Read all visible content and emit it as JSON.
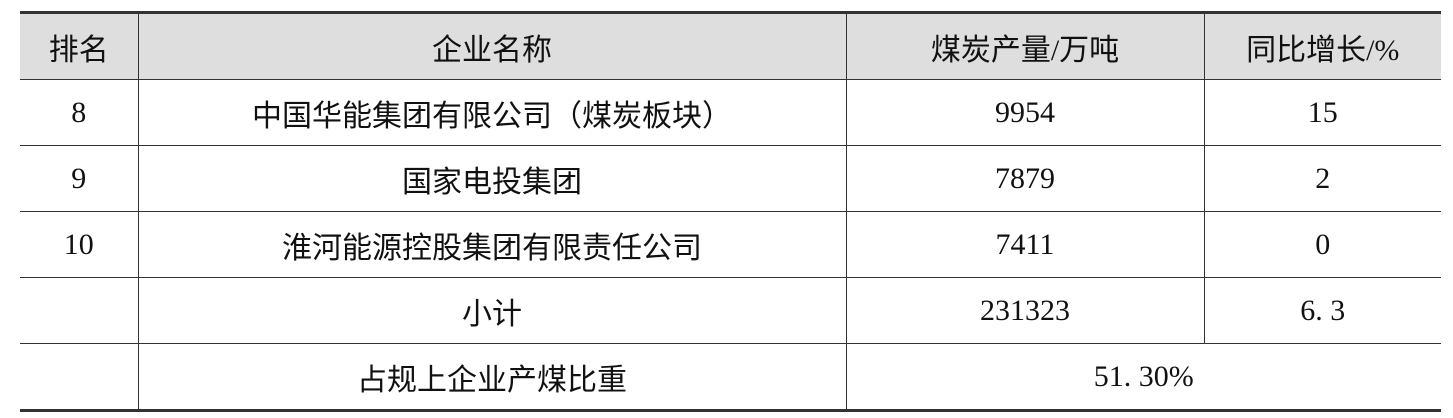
{
  "table": {
    "headers": [
      "排名",
      "企业名称",
      "煤炭产量/万吨",
      "同比增长/%"
    ],
    "rows": [
      [
        "8",
        "中国华能集团有限公司（煤炭板块）",
        "9954",
        "15"
      ],
      [
        "9",
        "国家电投集团",
        "7879",
        "2"
      ],
      [
        "10",
        "淮河能源控股集团有限责任公司",
        "7411",
        "0"
      ],
      [
        "",
        "小计",
        "231323",
        "6. 3"
      ]
    ],
    "share_row": {
      "label": "占规上企业产煤比重",
      "value": "51. 30%"
    },
    "header_bg": "#dedede"
  }
}
